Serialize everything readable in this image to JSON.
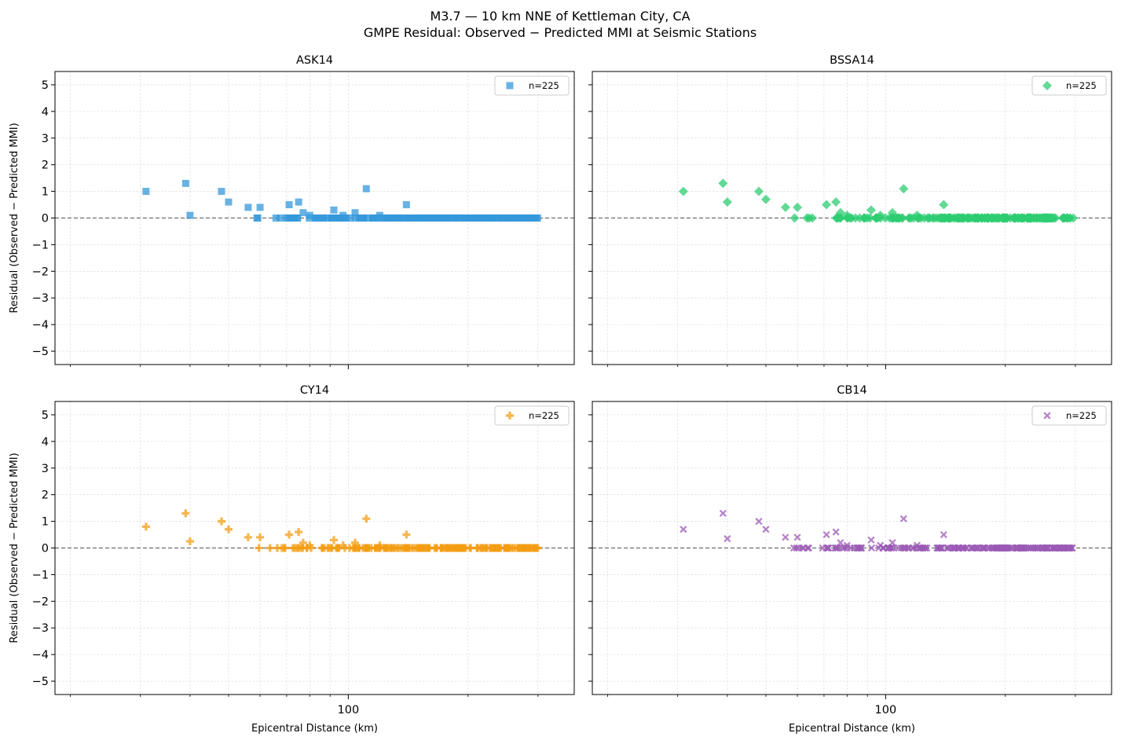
{
  "figure": {
    "title_line1": "M3.7 — 10 km NNE of Kettleman City, CA",
    "title_line2": "GMPE Residual: Observed − Predicted MMI at Seismic Stations"
  },
  "chart_data": [
    {
      "type": "scatter",
      "title": "ASK14",
      "xlabel": "",
      "ylabel": "Residual (Observed − Predicted MMI)",
      "xscale": "log",
      "ylim": [
        -5.5,
        5.5
      ],
      "yticks": [
        -5,
        -4,
        -3,
        -2,
        -1,
        0,
        1,
        2,
        3,
        4,
        5
      ],
      "xticks_major": [
        100
      ],
      "xtick_labels_visible": false,
      "grid": true,
      "legend": {
        "entry": "n=225",
        "placement": "top-right"
      },
      "reference_line_y": 0,
      "marker": "square",
      "color": "#3498db",
      "n": 225,
      "nonzero_points": [
        [
          31,
          1.0
        ],
        [
          39,
          1.3
        ],
        [
          40,
          0.1
        ],
        [
          48,
          1.0
        ],
        [
          50,
          0.6
        ],
        [
          56,
          0.4
        ],
        [
          60,
          0.4
        ],
        [
          71,
          0.5
        ],
        [
          75,
          0.6
        ],
        [
          77,
          0.2
        ],
        [
          80,
          0.1
        ],
        [
          92,
          0.3
        ],
        [
          97,
          0.1
        ],
        [
          104,
          0.2
        ],
        [
          111,
          1.1
        ],
        [
          120,
          0.1
        ],
        [
          140,
          0.5
        ]
      ],
      "zero_points_range": [
        56,
        300
      ]
    },
    {
      "type": "scatter",
      "title": "BSSA14",
      "xlabel": "",
      "ylabel": "",
      "xscale": "log",
      "ylim": [
        -5.5,
        5.5
      ],
      "yticks": [
        -5,
        -4,
        -3,
        -2,
        -1,
        0,
        1,
        2,
        3,
        4,
        5
      ],
      "xticks_major": [
        100
      ],
      "xtick_labels_visible": false,
      "grid": true,
      "legend": {
        "entry": "n=225",
        "placement": "top-right"
      },
      "reference_line_y": 0,
      "marker": "diamond",
      "color": "#2ecc71",
      "n": 225,
      "nonzero_points": [
        [
          31,
          1.0
        ],
        [
          39,
          1.3
        ],
        [
          40,
          0.6
        ],
        [
          48,
          1.0
        ],
        [
          50,
          0.7
        ],
        [
          56,
          0.4
        ],
        [
          60,
          0.4
        ],
        [
          71,
          0.5
        ],
        [
          75,
          0.6
        ],
        [
          77,
          0.2
        ],
        [
          80,
          0.1
        ],
        [
          92,
          0.3
        ],
        [
          97,
          0.1
        ],
        [
          104,
          0.2
        ],
        [
          111,
          1.1
        ],
        [
          120,
          0.1
        ],
        [
          140,
          0.5
        ]
      ],
      "zero_points_range": [
        56,
        300
      ]
    },
    {
      "type": "scatter",
      "title": "CY14",
      "xlabel": "Epicentral Distance (km)",
      "ylabel": "Residual (Observed − Predicted MMI)",
      "xscale": "log",
      "ylim": [
        -5.5,
        5.5
      ],
      "yticks": [
        -5,
        -4,
        -3,
        -2,
        -1,
        0,
        1,
        2,
        3,
        4,
        5
      ],
      "xticks_major": [
        100
      ],
      "xtick_labels_visible": true,
      "grid": true,
      "legend": {
        "entry": "n=225",
        "placement": "top-right"
      },
      "reference_line_y": 0,
      "marker": "plus",
      "color": "#f39c12",
      "n": 225,
      "nonzero_points": [
        [
          31,
          0.8
        ],
        [
          39,
          1.3
        ],
        [
          40,
          0.25
        ],
        [
          48,
          1.0
        ],
        [
          50,
          0.7
        ],
        [
          56,
          0.4
        ],
        [
          60,
          0.4
        ],
        [
          71,
          0.5
        ],
        [
          75,
          0.6
        ],
        [
          77,
          0.2
        ],
        [
          80,
          0.1
        ],
        [
          92,
          0.3
        ],
        [
          97,
          0.1
        ],
        [
          104,
          0.2
        ],
        [
          111,
          1.1
        ],
        [
          120,
          0.1
        ],
        [
          140,
          0.5
        ]
      ],
      "zero_points_range": [
        56,
        300
      ]
    },
    {
      "type": "scatter",
      "title": "CB14",
      "xlabel": "Epicentral Distance (km)",
      "ylabel": "",
      "xscale": "log",
      "ylim": [
        -5.5,
        5.5
      ],
      "yticks": [
        -5,
        -4,
        -3,
        -2,
        -1,
        0,
        1,
        2,
        3,
        4,
        5
      ],
      "xticks_major": [
        100
      ],
      "xtick_labels_visible": true,
      "grid": true,
      "legend": {
        "entry": "n=225",
        "placement": "top-right"
      },
      "reference_line_y": 0,
      "marker": "x",
      "color": "#9b59b6",
      "n": 225,
      "nonzero_points": [
        [
          31,
          0.7
        ],
        [
          39,
          1.3
        ],
        [
          40,
          0.35
        ],
        [
          48,
          1.0
        ],
        [
          50,
          0.7
        ],
        [
          56,
          0.4
        ],
        [
          60,
          0.4
        ],
        [
          71,
          0.5
        ],
        [
          75,
          0.6
        ],
        [
          77,
          0.2
        ],
        [
          80,
          0.1
        ],
        [
          92,
          0.3
        ],
        [
          97,
          0.1
        ],
        [
          104,
          0.2
        ],
        [
          111,
          1.1
        ],
        [
          120,
          0.1
        ],
        [
          140,
          0.5
        ]
      ],
      "zero_points_range": [
        56,
        300
      ]
    }
  ]
}
